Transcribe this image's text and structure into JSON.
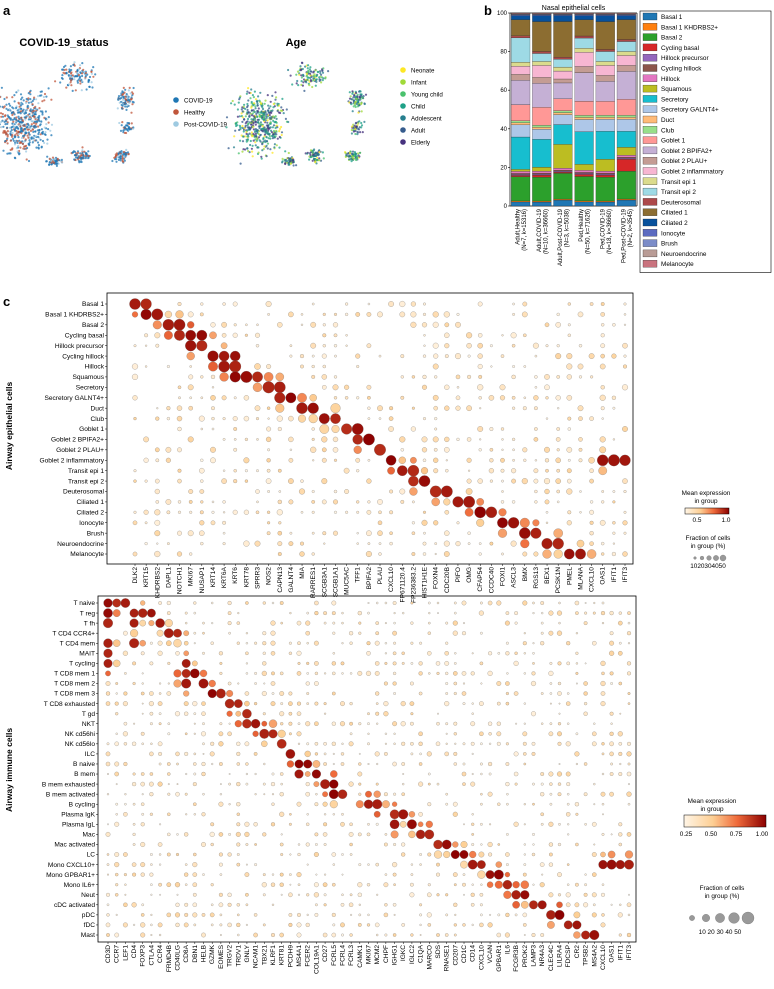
{
  "panels": {
    "a": {
      "label": "a",
      "umap1_title": "COVID-19_status",
      "umap2_title": "Age",
      "status_legend": [
        "COVID-19",
        "Healthy",
        "Post-COVID-19"
      ],
      "status_colors": [
        "#1f77b4",
        "#c0563b",
        "#9ecae1"
      ],
      "age_legend": [
        "Neonate",
        "Infant",
        "Young child",
        "Child",
        "Adolescent",
        "Adult",
        "Elderly"
      ],
      "age_colors": [
        "#fde725",
        "#a0da39",
        "#4ac16d",
        "#1fa187",
        "#277f8e",
        "#365c8d",
        "#46327e"
      ]
    },
    "b": {
      "label": "b"
    },
    "c": {
      "label": "c",
      "epithelial_axis_label": "Airway epithelial cells",
      "immune_axis_label": "Airway immune cells",
      "legend_epi": {
        "mean_title_1": "Mean expression",
        "mean_title_2": "in group",
        "ticks": [
          "0.5",
          "1.0"
        ],
        "frac_title": "Fraction of cells",
        "frac_title_2": "in group (%)",
        "frac_ticks": "1020304050"
      },
      "legend_imm": {
        "mean_title_1": "Mean expression",
        "mean_title_2": "in group",
        "ticks": [
          "0.25",
          "0.50",
          "0.75",
          "1.00"
        ],
        "frac_title": "Fraction of cells",
        "frac_title_2": "in group (%)",
        "frac_ticks": "10 20 30 40 50"
      }
    }
  },
  "chart_data": [
    {
      "type": "bar",
      "title": "Nasal epithelial cells",
      "ylim": [
        0,
        100
      ],
      "yticks": [
        0,
        20,
        40,
        60,
        80,
        100
      ],
      "categories": [
        "Adult,Healthy\n(N=7, k=15316)",
        "Adult,COVID-19\n(N=10, k=36660)",
        "Adult,Post-COVID-19\n(N=3, k=5038)",
        "Ped,Healthy\n(N=50, k=71626)",
        "Ped,COVID-19\n(N=18, k=36660)",
        "Ped,Post-COVID-19\n(N=2, k=3545)"
      ],
      "series": [
        {
          "name": "Basal 1",
          "color": "#1f77b4",
          "values": [
            2,
            2,
            3,
            2,
            2,
            3
          ]
        },
        {
          "name": "Basal 1 KHDRBS2+",
          "color": "#ff7f0e",
          "values": [
            0.5,
            0.5,
            0.5,
            0.5,
            0.5,
            0.5
          ]
        },
        {
          "name": "Basal 2",
          "color": "#2ca02c",
          "values": [
            12,
            12,
            13,
            12,
            12,
            14
          ]
        },
        {
          "name": "Cycling basal",
          "color": "#d62728",
          "values": [
            0.6,
            1,
            0.6,
            1,
            1,
            6
          ]
        },
        {
          "name": "Hillock precursor",
          "color": "#9467bd",
          "values": [
            0.5,
            0.5,
            0.5,
            0.5,
            0.5,
            0.5
          ]
        },
        {
          "name": "Cycling hillock",
          "color": "#8c564b",
          "values": [
            0.5,
            0.5,
            0.5,
            0.5,
            0.5,
            0.5
          ]
        },
        {
          "name": "Hillock",
          "color": "#e377c2",
          "values": [
            1,
            1,
            1,
            1,
            1,
            1
          ]
        },
        {
          "name": "Squamous",
          "color": "#bcbd22",
          "values": [
            1,
            2,
            12,
            3,
            6,
            4
          ]
        },
        {
          "name": "Secretory",
          "color": "#17becf",
          "values": [
            16,
            14,
            10,
            16,
            14,
            8
          ]
        },
        {
          "name": "Secretory GALNT4+",
          "color": "#aec7e8",
          "values": [
            6,
            5,
            5,
            6,
            6,
            6
          ]
        },
        {
          "name": "Duct",
          "color": "#ffbb78",
          "values": [
            1,
            1,
            1,
            1,
            1,
            1
          ]
        },
        {
          "name": "Club",
          "color": "#98df8a",
          "values": [
            1,
            1,
            1,
            1,
            1,
            1
          ]
        },
        {
          "name": "Goblet 1",
          "color": "#ff9896",
          "values": [
            8,
            9,
            6,
            7,
            7,
            8
          ]
        },
        {
          "name": "Goblet 2 BPIFA2+",
          "color": "#c5b0d5",
          "values": [
            12,
            12,
            8,
            14,
            10,
            14
          ]
        },
        {
          "name": "Goblet 2 PLAU+",
          "color": "#c49c94",
          "values": [
            3,
            3,
            2,
            3,
            3,
            3
          ]
        },
        {
          "name": "Goblet 2 inflammatory",
          "color": "#f7b6d2",
          "values": [
            4,
            6,
            4,
            7,
            5,
            5
          ]
        },
        {
          "name": "Transit epi 1",
          "color": "#dbdb8d",
          "values": [
            2,
            2,
            2,
            2,
            2,
            2
          ]
        },
        {
          "name": "Transit epi 2",
          "color": "#9edae5",
          "values": [
            12,
            4,
            4,
            5,
            5,
            5
          ]
        },
        {
          "name": "Deuterosomal",
          "color": "#ad494a",
          "values": [
            1,
            1,
            1,
            1,
            1,
            1
          ]
        },
        {
          "name": "Ciliated 1",
          "color": "#8c6d31",
          "values": [
            8,
            15,
            18,
            8,
            14,
            10
          ]
        },
        {
          "name": "Ciliated 2",
          "color": "#08519c",
          "values": [
            2,
            3,
            3,
            2,
            3,
            2
          ]
        },
        {
          "name": "Ionocyte",
          "color": "#5c6bc0",
          "values": [
            0.4,
            0.4,
            0.4,
            0.4,
            0.4,
            0.4
          ]
        },
        {
          "name": "Brush",
          "color": "#7b8cc8",
          "values": [
            0.3,
            0.3,
            0.3,
            0.3,
            0.3,
            0.3
          ]
        },
        {
          "name": "Neuroendocrine",
          "color": "#b99c96",
          "values": [
            0.3,
            0.3,
            0.3,
            0.3,
            0.3,
            0.3
          ]
        },
        {
          "name": "Melanocyte",
          "color": "#c9737e",
          "values": [
            0.3,
            0.3,
            0.3,
            0.3,
            0.3,
            0.3
          ]
        }
      ]
    },
    {
      "type": "scatter",
      "subtype": "dotplot",
      "name": "epithelial",
      "rows": [
        "Basal 1",
        "Basal 1 KHDRBS2+",
        "Basal 2",
        "Cycling basal",
        "Hillock precursor",
        "Cycling hillock",
        "Hillock",
        "Squamous",
        "Secretory",
        "Secretory GALNT4+",
        "Duct",
        "Club",
        "Goblet 1",
        "Goblet 2 BPIFA2+",
        "Goblet 2 PLAU+",
        "Goblet 2 inflammatory",
        "Transit epi 1",
        "Transit epi 2",
        "Deuterosomal",
        "Ciliated 1",
        "Ciliated 2",
        "Ionocyte",
        "Brush",
        "Neuroendocrine",
        "Melanocyte"
      ],
      "genes": [
        "DLK2",
        "KRT15",
        "KHDRBS2",
        "DAPL1",
        "NOTCH1",
        "MKI67",
        "NUSAP1",
        "KRT14",
        "KRT6A",
        "KRT6",
        "KRT78",
        "SPRR3",
        "NOS2",
        "CAPN13",
        "GALNT4",
        "MIA",
        "RARRES1",
        "SCGB3A1",
        "SCGB1A1",
        "MUC5AC",
        "TFF1",
        "BPIFA2",
        "PLAU",
        "CXCL10",
        "FP671120.4",
        "FP236383.2",
        "HIST1H1E",
        "FOXN4",
        "CDC20B",
        "PIFO",
        "OMG",
        "CFAP54",
        "CCDC40",
        "FOXI1",
        "ASCL3",
        "BMX",
        "RGS13",
        "BEX1",
        "PCSK1N",
        "PMEL",
        "MLANA",
        "CXCL10",
        "OAS1",
        "IFIT1",
        "IFIT3"
      ],
      "markers": [
        [
          0,
          0
        ],
        [
          0,
          1
        ],
        [
          1,
          1
        ],
        [
          1,
          2
        ],
        [
          2,
          3
        ],
        [
          2,
          4
        ],
        [
          3,
          4
        ],
        [
          3,
          5
        ],
        [
          3,
          6
        ],
        [
          4,
          5
        ],
        [
          4,
          6
        ],
        [
          5,
          7
        ],
        [
          5,
          8
        ],
        [
          5,
          9
        ],
        [
          6,
          8
        ],
        [
          6,
          9
        ],
        [
          7,
          9
        ],
        [
          7,
          10
        ],
        [
          7,
          11
        ],
        [
          8,
          12
        ],
        [
          8,
          13
        ],
        [
          9,
          13
        ],
        [
          9,
          14
        ],
        [
          10,
          15
        ],
        [
          10,
          16
        ],
        [
          11,
          17
        ],
        [
          11,
          18
        ],
        [
          12,
          19
        ],
        [
          12,
          20
        ],
        [
          13,
          20
        ],
        [
          13,
          21
        ],
        [
          14,
          22
        ],
        [
          15,
          23
        ],
        [
          15,
          42
        ],
        [
          15,
          43
        ],
        [
          15,
          44
        ],
        [
          16,
          24
        ],
        [
          16,
          25
        ],
        [
          17,
          25
        ],
        [
          17,
          26
        ],
        [
          18,
          27
        ],
        [
          18,
          28
        ],
        [
          19,
          29
        ],
        [
          19,
          30
        ],
        [
          20,
          31
        ],
        [
          20,
          32
        ],
        [
          21,
          33
        ],
        [
          21,
          34
        ],
        [
          22,
          35
        ],
        [
          22,
          36
        ],
        [
          23,
          37
        ],
        [
          23,
          38
        ],
        [
          24,
          39
        ],
        [
          24,
          40
        ]
      ],
      "legend": {
        "mean_expression_ticks": [
          0.5,
          1.0
        ],
        "fraction_ticks": [
          10,
          20,
          30,
          40,
          50
        ]
      }
    },
    {
      "type": "scatter",
      "subtype": "dotplot",
      "name": "immune",
      "rows": [
        "T naive",
        "T reg",
        "T fh",
        "T CD4 CCR4+",
        "T CD4 mem",
        "MAIT",
        "T cycling",
        "T CD8 mem 1",
        "T CD8 mem 2",
        "T CD8 mem 3",
        "T CD8 exhausted",
        "T gd",
        "NKT",
        "NK cd56hi",
        "NK cd56lo",
        "ILC",
        "B naive",
        "B mem",
        "B mem exhausted",
        "B mem activated",
        "B cycling",
        "Plasma IgK",
        "Plasma IgL",
        "Mac",
        "Mac activated",
        "LC",
        "Mono CXCL10+",
        "Mono GPBAR1+",
        "Mono IL6+",
        "Neut",
        "cDC activated",
        "pDC",
        "fDC",
        "Mast"
      ],
      "genes": [
        "CD3D",
        "CCR7",
        "LEF1",
        "CD4",
        "FOXP3",
        "CTLA4",
        "CCR4",
        "FRMD4B",
        "CD40LG",
        "CD8A",
        "DBN1",
        "HELB",
        "GZMK",
        "EOMES",
        "TRGV2",
        "TRDV1",
        "GNLY",
        "NCAM1",
        "TBX21",
        "KLRF1",
        "KRT81",
        "PCDH9",
        "MS4A1",
        "FCER2",
        "COL19A1",
        "CD27",
        "FCRL5",
        "FCRL4",
        "FCRL3",
        "CAMK1",
        "MKI67",
        "MCM2",
        "CHPF",
        "IGHG1",
        "IGKC",
        "IGLC2",
        "C1QA",
        "MARCO",
        "SDS",
        "RNASE1",
        "CD207",
        "CD1C",
        "CD14",
        "CXCL10",
        "VCAN",
        "GPBAR1",
        "IL6",
        "FCGR3B",
        "PROK2",
        "LAMP3",
        "NR4A3",
        "CLEC4C",
        "LILRA4",
        "FDCSP",
        "CR2",
        "TPSB2",
        "MS4A2",
        "CXCL10",
        "OAS1",
        "IFIT1",
        "IFIT3"
      ],
      "markers": [
        [
          0,
          0
        ],
        [
          0,
          1
        ],
        [
          0,
          2
        ],
        [
          1,
          0
        ],
        [
          1,
          3
        ],
        [
          1,
          4
        ],
        [
          1,
          5
        ],
        [
          2,
          0
        ],
        [
          2,
          3
        ],
        [
          2,
          6
        ],
        [
          3,
          7
        ],
        [
          3,
          8
        ],
        [
          4,
          0
        ],
        [
          4,
          3
        ],
        [
          5,
          0
        ],
        [
          6,
          0
        ],
        [
          6,
          9
        ],
        [
          7,
          9
        ],
        [
          7,
          10
        ],
        [
          8,
          9
        ],
        [
          8,
          11
        ],
        [
          9,
          12
        ],
        [
          9,
          13
        ],
        [
          10,
          14
        ],
        [
          10,
          15
        ],
        [
          11,
          16
        ],
        [
          12,
          16
        ],
        [
          12,
          17
        ],
        [
          13,
          18
        ],
        [
          13,
          19
        ],
        [
          14,
          20
        ],
        [
          15,
          21
        ],
        [
          16,
          22
        ],
        [
          16,
          23
        ],
        [
          17,
          22
        ],
        [
          17,
          24
        ],
        [
          18,
          25
        ],
        [
          18,
          26
        ],
        [
          19,
          26
        ],
        [
          19,
          27
        ],
        [
          20,
          30
        ],
        [
          20,
          31
        ],
        [
          21,
          33
        ],
        [
          21,
          34
        ],
        [
          22,
          33
        ],
        [
          22,
          35
        ],
        [
          23,
          36
        ],
        [
          23,
          37
        ],
        [
          24,
          38
        ],
        [
          24,
          39
        ],
        [
          25,
          40
        ],
        [
          25,
          41
        ],
        [
          26,
          42
        ],
        [
          26,
          43
        ],
        [
          27,
          44
        ],
        [
          27,
          45
        ],
        [
          28,
          46
        ],
        [
          29,
          47
        ],
        [
          29,
          48
        ],
        [
          30,
          49
        ],
        [
          30,
          50
        ],
        [
          31,
          51
        ],
        [
          31,
          52
        ],
        [
          32,
          53
        ],
        [
          32,
          54
        ],
        [
          33,
          55
        ],
        [
          33,
          56
        ],
        [
          26,
          57
        ],
        [
          26,
          58
        ],
        [
          26,
          59
        ],
        [
          26,
          60
        ]
      ],
      "legend": {
        "mean_expression_ticks": [
          0.25,
          0.5,
          0.75,
          1.0
        ],
        "fraction_ticks": [
          10,
          20,
          30,
          40,
          50
        ]
      }
    }
  ]
}
